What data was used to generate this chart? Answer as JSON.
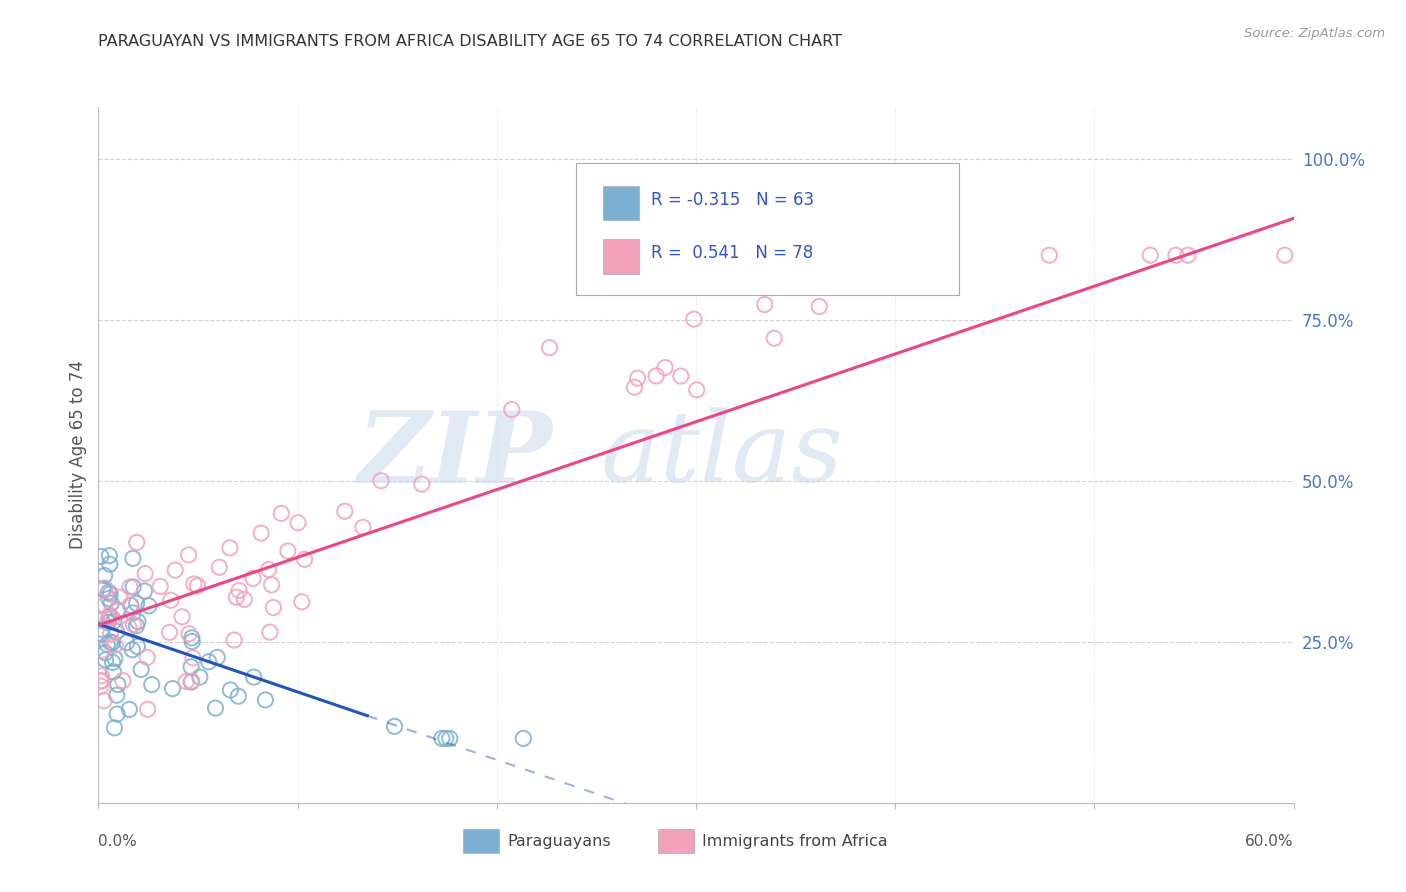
{
  "title": "PARAGUAYAN VS IMMIGRANTS FROM AFRICA DISABILITY AGE 65 TO 74 CORRELATION CHART",
  "source": "Source: ZipAtlas.com",
  "ylabel": "Disability Age 65 to 74",
  "xlim": [
    0.0,
    0.6
  ],
  "ylim": [
    0.0,
    1.08
  ],
  "yticks": [
    0.25,
    0.5,
    0.75,
    1.0
  ],
  "ytick_labels": [
    "25.0%",
    "50.0%",
    "75.0%",
    "100.0%"
  ],
  "color_paraguayan": "#7BAFD4",
  "color_africa": "#F4A0B8",
  "color_line_paraguayan": "#2255BB",
  "color_line_africa": "#EE4488",
  "background_color": "#FFFFFF",
  "watermark_zip": "ZIP",
  "watermark_atlas": "atlas",
  "grid_color": "#CCCCCC",
  "title_color": "#333333",
  "ytick_color": "#4477CC",
  "source_color": "#999999"
}
